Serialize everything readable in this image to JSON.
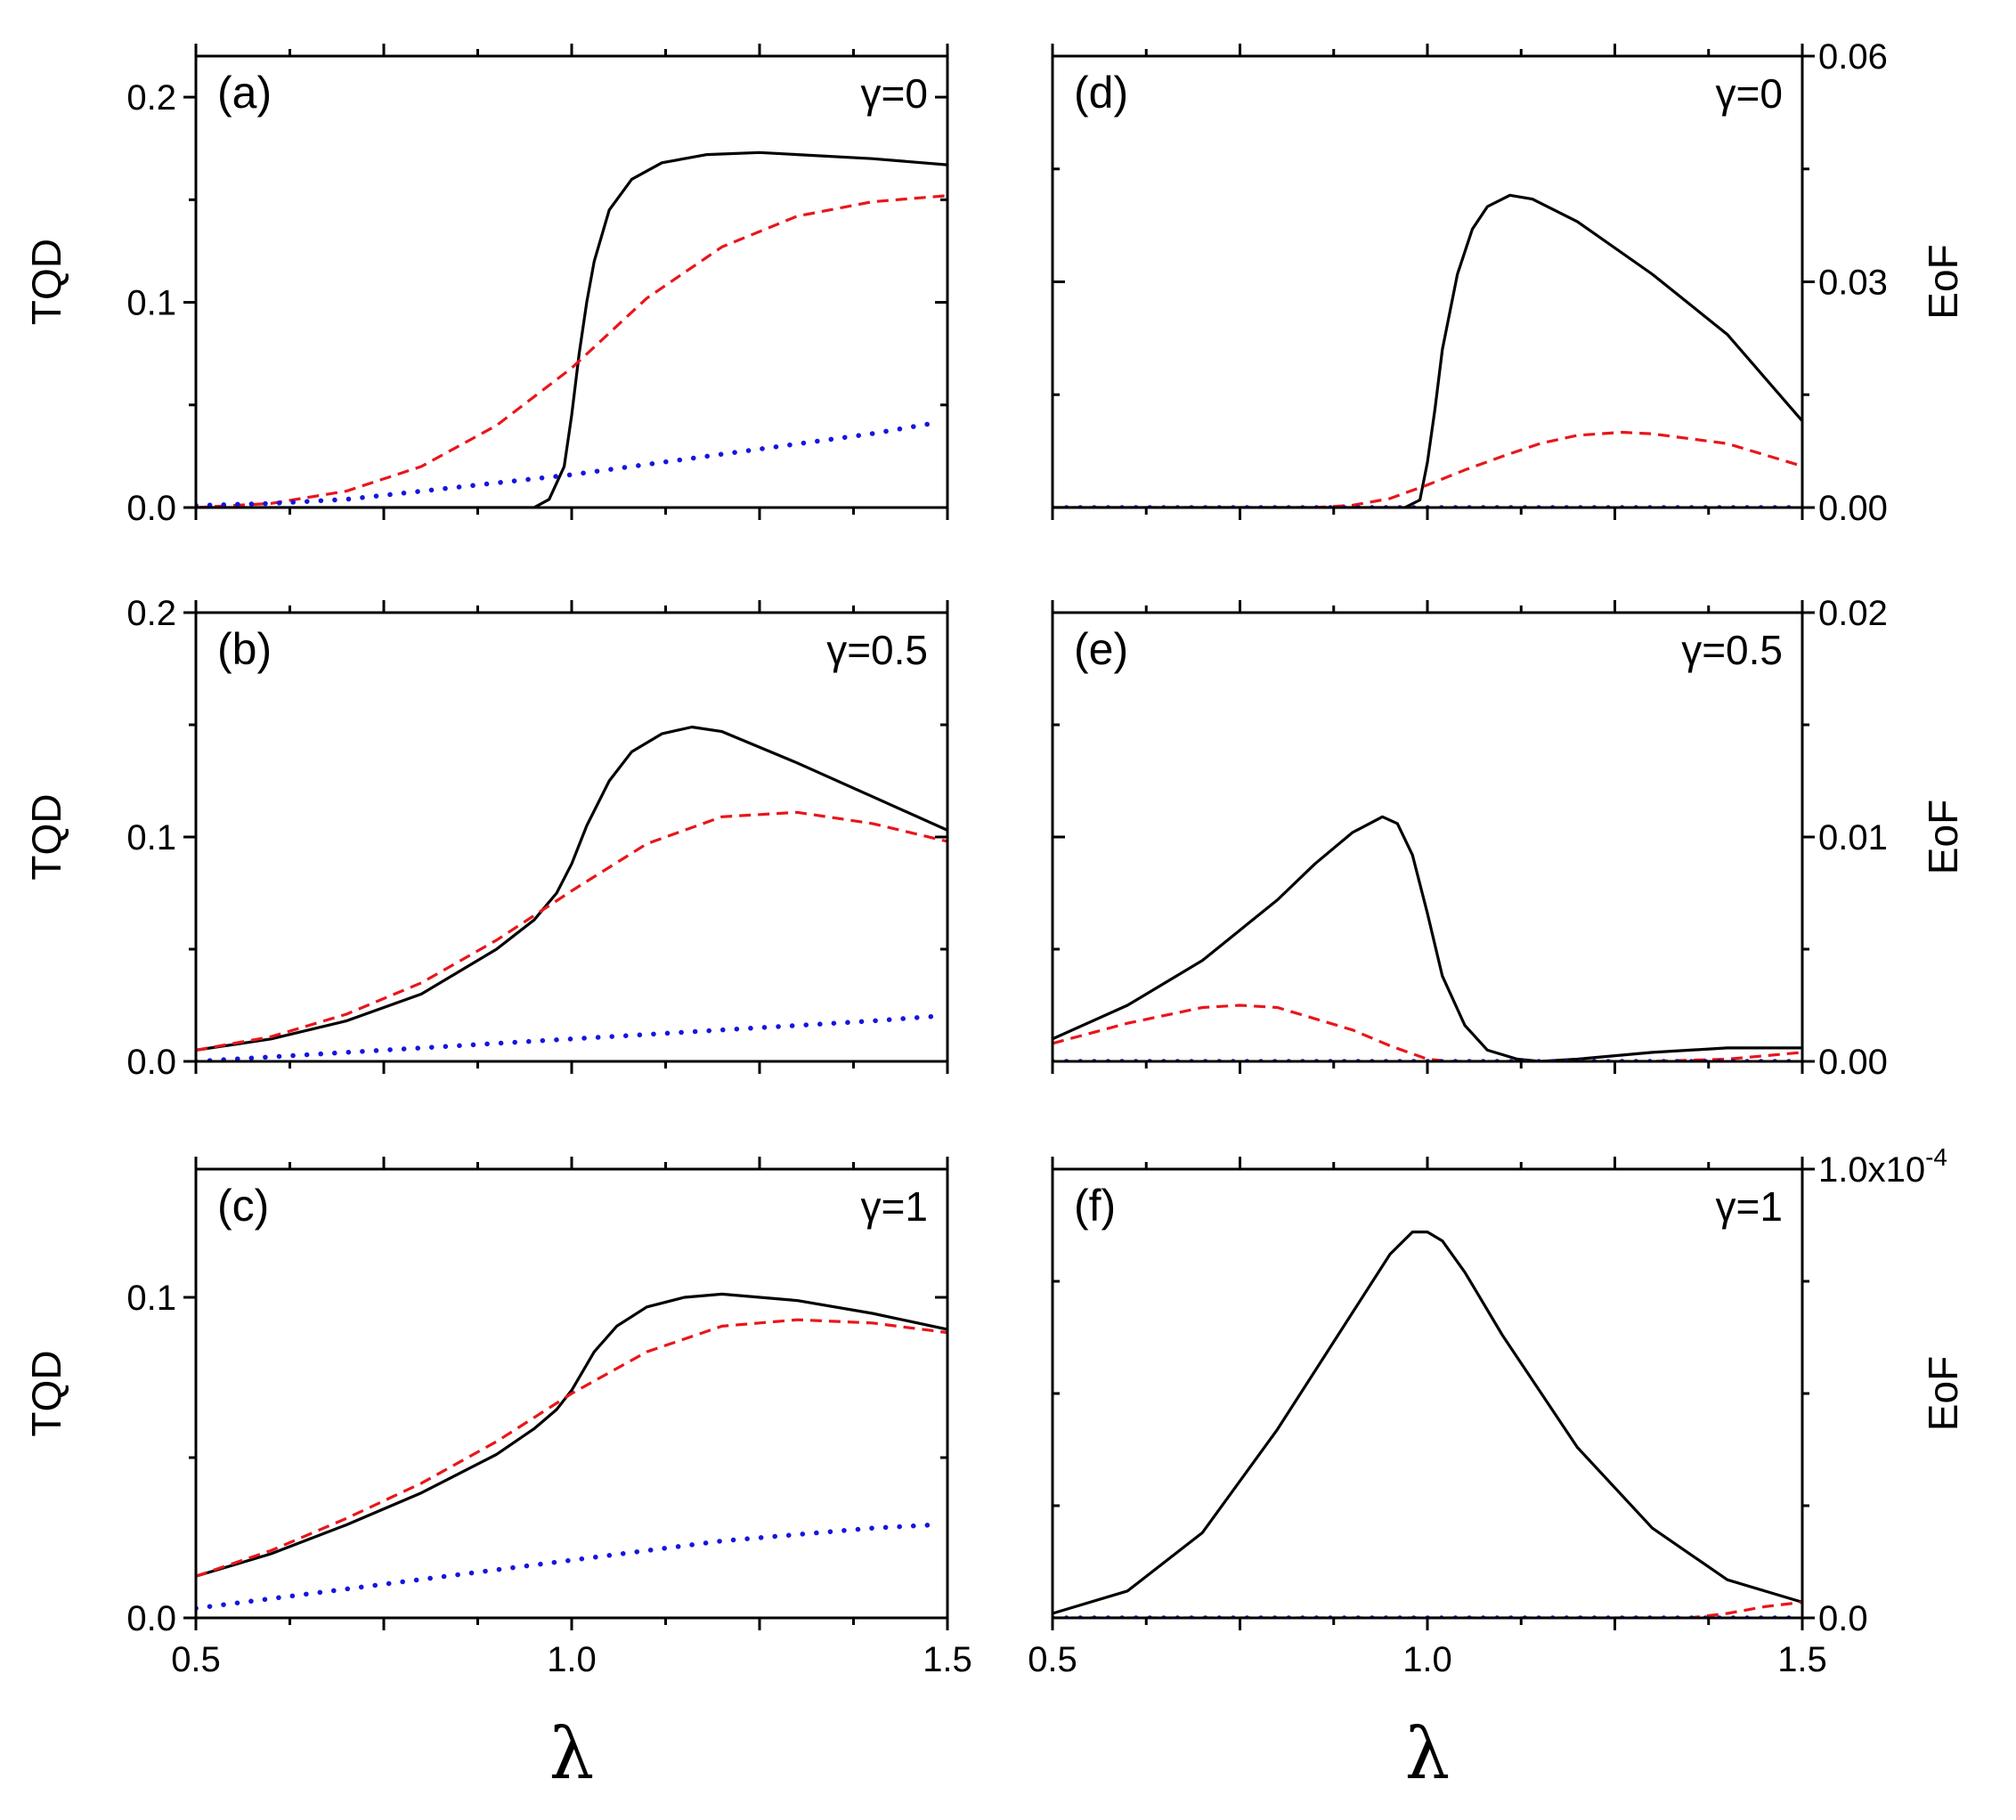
{
  "figure": {
    "x_axis_label": "λ",
    "left_y_axis_label": "TQD",
    "right_y_axis_label": "EoF",
    "series_styles": {
      "solid_black": "#000000",
      "dashed_red": "#e8161b",
      "dotted_blue": "#1515e0"
    }
  },
  "chart_data": [
    {
      "id": "a",
      "panel_label": "(a)",
      "gamma_label": "γ=0",
      "type": "line",
      "ylabel": "TQD",
      "xlabel": "",
      "xlim": [
        0.5,
        1.5
      ],
      "ylim": [
        0,
        0.22
      ],
      "y_ticks": [
        0,
        0.1,
        0.2
      ],
      "y_tick_labels": [
        "0.0",
        "0.1",
        "0.2"
      ],
      "x_ticks": [
        0.5,
        1.0,
        1.5
      ],
      "x_tick_labels": [],
      "series": [
        {
          "name": "solid",
          "style": "solid_black",
          "x": [
            0.5,
            0.9,
            0.95,
            0.97,
            0.99,
            1.0,
            1.01,
            1.02,
            1.03,
            1.05,
            1.08,
            1.12,
            1.18,
            1.25,
            1.3,
            1.4,
            1.5
          ],
          "y": [
            0.0,
            0.0,
            0.0,
            0.004,
            0.02,
            0.045,
            0.075,
            0.1,
            0.12,
            0.145,
            0.16,
            0.168,
            0.172,
            0.173,
            0.172,
            0.17,
            0.167
          ]
        },
        {
          "name": "dashed",
          "style": "dashed_red",
          "x": [
            0.5,
            0.6,
            0.7,
            0.8,
            0.9,
            1.0,
            1.05,
            1.1,
            1.2,
            1.3,
            1.4,
            1.5
          ],
          "y": [
            0.0,
            0.002,
            0.008,
            0.02,
            0.04,
            0.068,
            0.085,
            0.102,
            0.127,
            0.142,
            0.149,
            0.152
          ]
        },
        {
          "name": "dotted",
          "style": "dotted_blue",
          "x": [
            0.5,
            0.6,
            0.7,
            0.8,
            0.9,
            1.0,
            1.1,
            1.2,
            1.3,
            1.4,
            1.48
          ],
          "y": [
            0.001,
            0.002,
            0.004,
            0.008,
            0.012,
            0.016,
            0.021,
            0.026,
            0.031,
            0.036,
            0.041
          ]
        }
      ]
    },
    {
      "id": "b",
      "panel_label": "(b)",
      "gamma_label": "γ=0.5",
      "type": "line",
      "ylabel": "TQD",
      "xlabel": "",
      "xlim": [
        0.5,
        1.5
      ],
      "ylim": [
        0,
        0.2
      ],
      "y_ticks": [
        0,
        0.1,
        0.2
      ],
      "y_tick_labels": [
        "0.0",
        "0.1",
        "0.2"
      ],
      "x_ticks": [
        0.5,
        1.0,
        1.5
      ],
      "x_tick_labels": [],
      "series": [
        {
          "name": "solid",
          "style": "solid_black",
          "x": [
            0.5,
            0.6,
            0.7,
            0.8,
            0.9,
            0.95,
            0.98,
            1.0,
            1.02,
            1.05,
            1.08,
            1.12,
            1.16,
            1.2,
            1.3,
            1.4,
            1.5
          ],
          "y": [
            0.005,
            0.01,
            0.018,
            0.03,
            0.05,
            0.063,
            0.075,
            0.088,
            0.105,
            0.125,
            0.138,
            0.146,
            0.149,
            0.147,
            0.133,
            0.118,
            0.103
          ]
        },
        {
          "name": "dashed",
          "style": "dashed_red",
          "x": [
            0.5,
            0.6,
            0.7,
            0.8,
            0.9,
            1.0,
            1.1,
            1.2,
            1.3,
            1.4,
            1.5
          ],
          "y": [
            0.005,
            0.011,
            0.021,
            0.035,
            0.054,
            0.076,
            0.097,
            0.109,
            0.111,
            0.106,
            0.098
          ]
        },
        {
          "name": "dotted",
          "style": "dotted_blue",
          "x": [
            0.5,
            0.6,
            0.7,
            0.8,
            0.9,
            1.0,
            1.1,
            1.2,
            1.3,
            1.4,
            1.48
          ],
          "y": [
            0.0,
            0.002,
            0.004,
            0.006,
            0.008,
            0.01,
            0.012,
            0.014,
            0.016,
            0.018,
            0.02
          ]
        }
      ]
    },
    {
      "id": "c",
      "panel_label": "(c)",
      "gamma_label": "γ=1",
      "type": "line",
      "ylabel": "TQD",
      "xlabel": "λ",
      "xlim": [
        0.5,
        1.5
      ],
      "ylim": [
        0,
        0.14
      ],
      "y_ticks": [
        0,
        0.1
      ],
      "y_tick_labels": [
        "0.0",
        "0.1"
      ],
      "x_ticks": [
        0.5,
        1.0,
        1.5
      ],
      "x_tick_labels": [
        "0.5",
        "1.0",
        "1.5"
      ],
      "series": [
        {
          "name": "solid",
          "style": "solid_black",
          "x": [
            0.5,
            0.6,
            0.7,
            0.8,
            0.9,
            0.95,
            0.98,
            1.0,
            1.03,
            1.06,
            1.1,
            1.15,
            1.2,
            1.3,
            1.4,
            1.5
          ],
          "y": [
            0.013,
            0.02,
            0.029,
            0.039,
            0.051,
            0.059,
            0.065,
            0.071,
            0.083,
            0.091,
            0.097,
            0.1,
            0.101,
            0.099,
            0.095,
            0.09
          ]
        },
        {
          "name": "dashed",
          "style": "dashed_red",
          "x": [
            0.5,
            0.6,
            0.7,
            0.8,
            0.9,
            1.0,
            1.1,
            1.2,
            1.3,
            1.4,
            1.5
          ],
          "y": [
            0.013,
            0.021,
            0.031,
            0.042,
            0.055,
            0.07,
            0.083,
            0.091,
            0.093,
            0.092,
            0.089
          ]
        },
        {
          "name": "dotted",
          "style": "dotted_blue",
          "x": [
            0.5,
            0.6,
            0.7,
            0.8,
            0.9,
            1.0,
            1.1,
            1.2,
            1.3,
            1.4,
            1.48
          ],
          "y": [
            0.003,
            0.006,
            0.009,
            0.012,
            0.015,
            0.018,
            0.021,
            0.024,
            0.026,
            0.028,
            0.029
          ]
        }
      ]
    },
    {
      "id": "d",
      "panel_label": "(d)",
      "gamma_label": "γ=0",
      "type": "line",
      "ylabel": "EoF",
      "xlabel": "",
      "xlim": [
        0.5,
        1.5
      ],
      "ylim": [
        0,
        0.06
      ],
      "y_ticks": [
        0,
        0.03,
        0.06
      ],
      "y_tick_labels": [
        "0.00",
        "0.03",
        "0.06"
      ],
      "x_ticks": [
        0.5,
        1.0,
        1.5
      ],
      "x_tick_labels": [],
      "series": [
        {
          "name": "solid",
          "style": "solid_black",
          "x": [
            0.5,
            0.97,
            0.99,
            1.0,
            1.01,
            1.02,
            1.04,
            1.06,
            1.08,
            1.11,
            1.14,
            1.2,
            1.3,
            1.4,
            1.5
          ],
          "y": [
            0.0,
            0.0,
            0.001,
            0.006,
            0.013,
            0.021,
            0.031,
            0.037,
            0.04,
            0.0415,
            0.041,
            0.038,
            0.031,
            0.023,
            0.0115
          ]
        },
        {
          "name": "dashed",
          "style": "dashed_red",
          "x": [
            0.5,
            0.85,
            0.9,
            0.95,
            1.0,
            1.05,
            1.1,
            1.15,
            1.2,
            1.26,
            1.3,
            1.4,
            1.5
          ],
          "y": [
            0.0,
            0.0,
            0.0003,
            0.0012,
            0.003,
            0.005,
            0.0068,
            0.0085,
            0.0096,
            0.01,
            0.0098,
            0.0085,
            0.0055
          ]
        },
        {
          "name": "dotted",
          "style": "dotted_blue",
          "x": [
            0.5,
            1.5
          ],
          "y": [
            0.0,
            0.0
          ]
        }
      ]
    },
    {
      "id": "e",
      "panel_label": "(e)",
      "gamma_label": "γ=0.5",
      "type": "line",
      "ylabel": "EoF",
      "xlabel": "",
      "xlim": [
        0.5,
        1.5
      ],
      "ylim": [
        0,
        0.02
      ],
      "y_ticks": [
        0,
        0.01,
        0.02
      ],
      "y_tick_labels": [
        "0.00",
        "0.01",
        "0.02"
      ],
      "x_ticks": [
        0.5,
        1.0,
        1.5
      ],
      "x_tick_labels": [],
      "series": [
        {
          "name": "solid",
          "style": "solid_black",
          "x": [
            0.5,
            0.6,
            0.7,
            0.8,
            0.85,
            0.9,
            0.94,
            0.96,
            0.98,
            1.0,
            1.02,
            1.05,
            1.08,
            1.12,
            1.15,
            1.2,
            1.3,
            1.4,
            1.5
          ],
          "y": [
            0.001,
            0.0025,
            0.0045,
            0.0072,
            0.0088,
            0.0102,
            0.0109,
            0.0106,
            0.0092,
            0.0066,
            0.0038,
            0.0016,
            0.0005,
            0.0001,
            0.0,
            0.0001,
            0.0004,
            0.0006,
            0.0006
          ]
        },
        {
          "name": "dashed",
          "style": "dashed_red",
          "x": [
            0.5,
            0.6,
            0.7,
            0.75,
            0.8,
            0.9,
            0.95,
            1.0,
            1.03,
            1.1,
            1.3,
            1.4,
            1.5
          ],
          "y": [
            0.0008,
            0.0017,
            0.0024,
            0.0025,
            0.0024,
            0.0014,
            0.0007,
            0.0001,
            0.0,
            0.0,
            0.0,
            0.0001,
            0.0004
          ]
        },
        {
          "name": "dotted",
          "style": "dotted_blue",
          "x": [
            0.5,
            1.5
          ],
          "y": [
            0.0,
            0.0
          ]
        }
      ]
    },
    {
      "id": "f",
      "panel_label": "(f)",
      "gamma_label": "γ=1",
      "type": "line",
      "ylabel": "EoF",
      "xlabel": "λ",
      "xlim": [
        0.5,
        1.5
      ],
      "ylim": [
        0,
        0.0001
      ],
      "y_ticks": [
        0,
        0.0001
      ],
      "y_tick_labels": [
        "0.0",
        "1.0x10"
      ],
      "y_tick_exponent": "-4",
      "x_ticks": [
        0.5,
        1.0,
        1.5
      ],
      "x_tick_labels": [
        "0.5",
        "1.0",
        "1.5"
      ],
      "series": [
        {
          "name": "solid",
          "style": "solid_black",
          "x": [
            0.5,
            0.6,
            0.7,
            0.8,
            0.9,
            0.95,
            0.98,
            1.0,
            1.02,
            1.05,
            1.1,
            1.2,
            1.3,
            1.4,
            1.5
          ],
          "y": [
            1e-06,
            6e-06,
            1.9e-05,
            4.2e-05,
            6.8e-05,
            8.1e-05,
            8.6e-05,
            8.6e-05,
            8.4e-05,
            7.7e-05,
            6.3e-05,
            3.8e-05,
            2e-05,
            8.5e-06,
            3.5e-06
          ]
        },
        {
          "name": "dashed",
          "style": "dashed_red",
          "x": [
            0.5,
            1.35,
            1.4,
            1.45,
            1.5
          ],
          "y": [
            0.0,
            0.0,
            1e-06,
            2.5e-06,
            3.5e-06
          ]
        },
        {
          "name": "dotted",
          "style": "dotted_blue",
          "x": [
            0.5,
            1.5
          ],
          "y": [
            0.0,
            0.0
          ]
        }
      ]
    }
  ]
}
